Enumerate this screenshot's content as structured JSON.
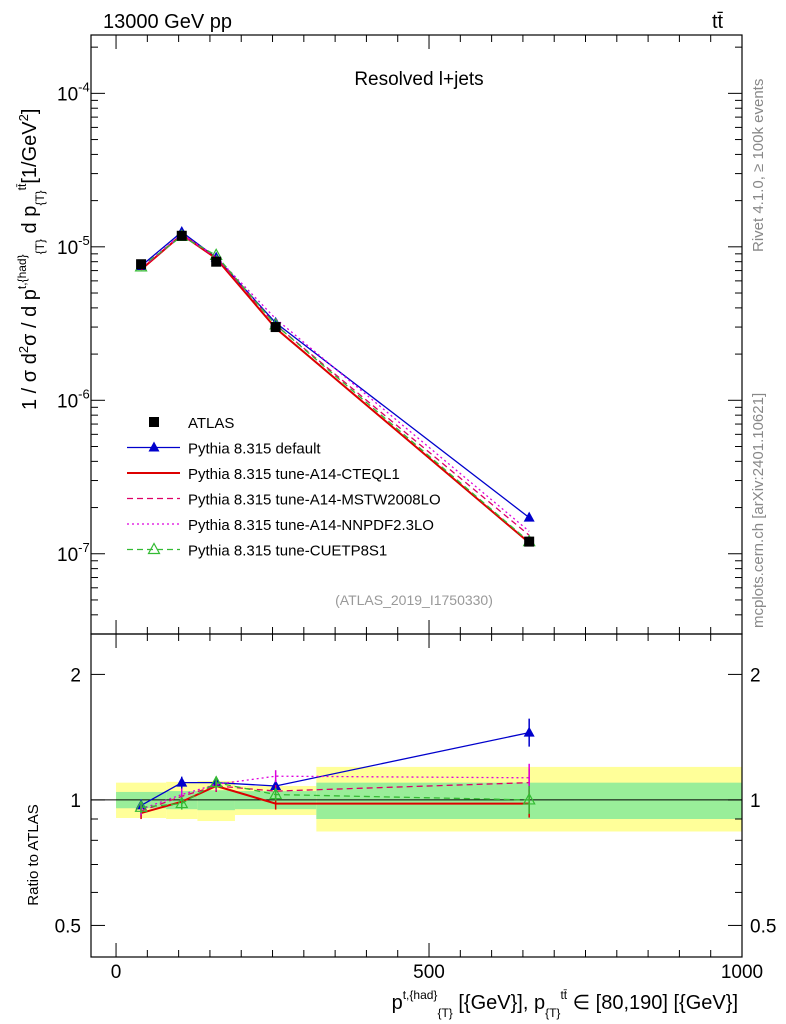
{
  "header": {
    "left": "13000 GeV pp",
    "right": "tt̄"
  },
  "side": {
    "upper": "Rivet 4.1.0, ≥ 100k events",
    "lower": "mcplots.cern.ch [arXiv:2401.10621]"
  },
  "chart_data": [
    {
      "type": "line",
      "title": "Resolved l+jets",
      "ylabel": "1 / σ d²σ / d p^{t,{had}}_{T} d p_{T}^{tt̄} [1/GeV²]",
      "watermark": "(ATLAS_2019_I1750330)",
      "yscale": "log",
      "xlim": [
        -40,
        1000
      ],
      "ylim": [
        3e-08,
        0.00024
      ],
      "ytick_labels": [
        {
          "v": 1e-07,
          "base": "10",
          "exp": "-7"
        },
        {
          "v": 1e-06,
          "base": "10",
          "exp": "-6"
        },
        {
          "v": 1e-05,
          "base": "10",
          "exp": "-5"
        },
        {
          "v": 0.0001,
          "base": "10",
          "exp": "-4"
        }
      ],
      "x": [
        40,
        105,
        160,
        255,
        660
      ],
      "series": [
        {
          "name": "ATLAS",
          "color": "#000000",
          "dash": "none",
          "marker": "square",
          "values": [
            7.7e-06,
            1.18e-05,
            8e-06,
            3e-06,
            1.2e-07
          ]
        },
        {
          "name": "Pythia 8.315 default",
          "color": "#0000cc",
          "dash": "none",
          "marker": "triangle",
          "values": [
            7.5e-06,
            1.25e-05,
            8.5e-06,
            3.2e-06,
            1.72e-07
          ]
        },
        {
          "name": "Pythia 8.315 tune-A14-CTEQL1",
          "color": "#dd0000",
          "dash": "none",
          "marker": "none",
          "values": [
            7.1e-06,
            1.2e-05,
            8.4e-06,
            2.95e-06,
            1.18e-07
          ]
        },
        {
          "name": "Pythia 8.315 tune-A14-MSTW2008LO",
          "color": "#dd0066",
          "dash": "6,4",
          "marker": "none",
          "values": [
            7.2e-06,
            1.19e-05,
            8.5e-06,
            3.1e-06,
            1.32e-07
          ]
        },
        {
          "name": "Pythia 8.315 tune-A14-NNPDF2.3LO",
          "color": "#dd00dd",
          "dash": "2,3",
          "marker": "none",
          "values": [
            7.3e-06,
            1.21e-05,
            8.6e-06,
            3.4e-06,
            1.4e-07
          ]
        },
        {
          "name": "Pythia 8.315 tune-CUETP8S1",
          "color": "#33bb33",
          "dash": "6,4",
          "marker": "open-triangle",
          "values": [
            7.4e-06,
            1.17e-05,
            8.8e-06,
            3.1e-06,
            1.2e-07
          ]
        }
      ]
    },
    {
      "type": "line",
      "ylabel": "Ratio to ATLAS",
      "xlabel": "p^{t,{had}}_{T} [{GeV}], p_{T}^{tt̄} ∈ [80,190] [{GeV}]",
      "yscale": "log",
      "xlim": [
        -40,
        1000
      ],
      "ylim": [
        0.42,
        2.5
      ],
      "xticks": [
        0,
        500,
        1000
      ],
      "yticks": [
        0.5,
        1,
        2
      ],
      "ytick_labels": [
        "0.5",
        "1",
        "2"
      ],
      "bands": {
        "edges": [
          0,
          80,
          130,
          190,
          320,
          1000
        ],
        "inner": [
          [
            0.955,
            1.045
          ],
          [
            0.95,
            1.05
          ],
          [
            0.945,
            1.055
          ],
          [
            0.95,
            1.05
          ],
          [
            0.9,
            1.1
          ],
          [
            0.9,
            1.1
          ]
        ],
        "outer": [
          [
            0.905,
            1.1
          ],
          [
            0.9,
            1.105
          ],
          [
            0.89,
            1.11
          ],
          [
            0.92,
            1.08
          ],
          [
            0.84,
            1.2
          ],
          [
            0.84,
            1.2
          ]
        ]
      },
      "x": [
        40,
        105,
        160,
        255,
        660
      ],
      "series": [
        {
          "name": "ATLAS",
          "values": [
            1,
            1,
            1,
            1,
            1
          ]
        },
        {
          "name": "Pythia 8.315 default",
          "values": [
            0.97,
            1.1,
            1.1,
            1.08,
            1.45
          ]
        },
        {
          "name": "Pythia 8.315 tune-A14-CTEQL1",
          "values": [
            0.93,
            0.99,
            1.08,
            0.98,
            0.98
          ]
        },
        {
          "name": "Pythia 8.315 tune-A14-MSTW2008LO",
          "values": [
            0.94,
            1.02,
            1.08,
            1.05,
            1.1
          ]
        },
        {
          "name": "Pythia 8.315 tune-A14-NNPDF2.3LO",
          "values": [
            0.95,
            1.03,
            1.09,
            1.14,
            1.13
          ]
        },
        {
          "name": "Pythia 8.315 tune-CUETP8S1",
          "values": [
            0.96,
            0.98,
            1.1,
            1.03,
            1.0
          ]
        }
      ]
    }
  ]
}
